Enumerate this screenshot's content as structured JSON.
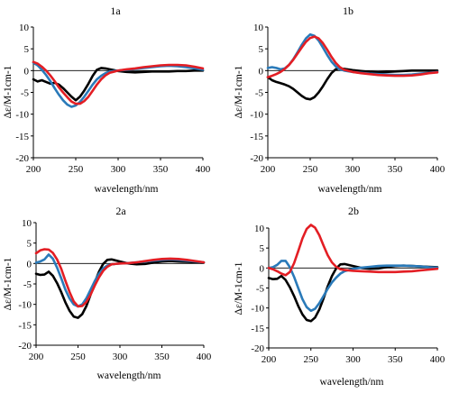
{
  "figure": {
    "panels": [
      {
        "id": "1a",
        "title": "1a",
        "xlabel": "wavelength/nm",
        "ylabel": "Δε/M-1cm-1"
      },
      {
        "id": "1b",
        "title": "1b",
        "xlabel": "wavelength/nm",
        "ylabel": "Δε/M-1cm-1"
      },
      {
        "id": "2a",
        "title": "2a",
        "xlabel": "wavelength/nm",
        "ylabel": "Δε/M-1cm-1"
      },
      {
        "id": "2b",
        "title": "2b",
        "xlabel": "wavelength/nm",
        "ylabel": "Δε/M-1cm-1"
      }
    ]
  },
  "chart_data": [
    {
      "type": "line",
      "title": "1a",
      "xlabel": "wavelength/nm",
      "ylabel": "Δε/M-1cm-1",
      "xlim": [
        200,
        400
      ],
      "ylim": [
        -20,
        10
      ],
      "xticks": [
        200,
        250,
        300,
        350,
        400
      ],
      "yticks": [
        -20,
        -15,
        -10,
        -5,
        0,
        5,
        10
      ],
      "grid": false,
      "series": [
        {
          "color": "#000000",
          "x": [
            200,
            205,
            210,
            215,
            220,
            225,
            230,
            235,
            240,
            245,
            250,
            255,
            260,
            265,
            270,
            275,
            280,
            285,
            290,
            295,
            300,
            310,
            320,
            330,
            340,
            350,
            360,
            370,
            380,
            390,
            400
          ],
          "y": [
            -2.0,
            -2.5,
            -2.2,
            -2.6,
            -3.0,
            -2.8,
            -3.2,
            -4.0,
            -5.0,
            -6.0,
            -6.8,
            -6.0,
            -4.6,
            -3.0,
            -1.2,
            0.2,
            0.6,
            0.5,
            0.3,
            0.1,
            -0.1,
            -0.3,
            -0.4,
            -0.3,
            -0.2,
            -0.2,
            -0.2,
            -0.1,
            -0.1,
            0.0,
            0.0
          ]
        },
        {
          "color": "#2a7ab9",
          "x": [
            200,
            205,
            210,
            215,
            220,
            225,
            230,
            235,
            240,
            245,
            250,
            255,
            260,
            265,
            270,
            275,
            280,
            285,
            290,
            300,
            310,
            320,
            330,
            340,
            350,
            360,
            370,
            380,
            390,
            400
          ],
          "y": [
            1.8,
            1.2,
            0.2,
            -1.0,
            -2.4,
            -4.0,
            -5.5,
            -6.8,
            -7.8,
            -8.3,
            -8.0,
            -7.2,
            -6.0,
            -4.6,
            -3.2,
            -2.0,
            -1.2,
            -0.6,
            -0.2,
            0.0,
            0.2,
            0.4,
            0.6,
            0.8,
            1.0,
            1.1,
            1.0,
            0.8,
            0.5,
            0.2
          ]
        },
        {
          "color": "#e31e24",
          "x": [
            200,
            205,
            210,
            215,
            220,
            225,
            230,
            235,
            240,
            245,
            250,
            255,
            260,
            265,
            270,
            275,
            280,
            285,
            290,
            300,
            310,
            320,
            330,
            340,
            350,
            360,
            370,
            380,
            390,
            400
          ],
          "y": [
            2.0,
            1.6,
            0.9,
            0.0,
            -1.1,
            -2.4,
            -3.8,
            -5.0,
            -6.1,
            -7.1,
            -7.6,
            -7.6,
            -7.0,
            -6.0,
            -4.6,
            -3.2,
            -2.0,
            -1.1,
            -0.5,
            0.0,
            0.3,
            0.5,
            0.8,
            1.0,
            1.2,
            1.3,
            1.3,
            1.2,
            0.9,
            0.5
          ]
        }
      ]
    },
    {
      "type": "line",
      "title": "1b",
      "xlabel": "wavelength/nm",
      "ylabel": "Δε/M-1cm-1",
      "xlim": [
        200,
        400
      ],
      "ylim": [
        -20,
        10
      ],
      "xticks": [
        200,
        250,
        300,
        350,
        400
      ],
      "yticks": [
        -20,
        -15,
        -10,
        -5,
        0,
        5,
        10
      ],
      "grid": false,
      "series": [
        {
          "color": "#000000",
          "x": [
            200,
            205,
            210,
            215,
            220,
            225,
            230,
            235,
            240,
            245,
            250,
            255,
            260,
            265,
            270,
            275,
            280,
            285,
            290,
            300,
            310,
            320,
            330,
            340,
            350,
            360,
            370,
            380,
            390,
            400
          ],
          "y": [
            -1.5,
            -2.2,
            -2.6,
            -2.9,
            -3.2,
            -3.6,
            -4.2,
            -5.0,
            -5.8,
            -6.4,
            -6.6,
            -6.1,
            -5.0,
            -3.6,
            -2.0,
            -0.6,
            0.3,
            0.5,
            0.4,
            0.1,
            -0.1,
            -0.3,
            -0.4,
            -0.3,
            -0.2,
            -0.1,
            0.0,
            0.0,
            0.0,
            0.0
          ]
        },
        {
          "color": "#2a7ab9",
          "x": [
            200,
            205,
            210,
            215,
            220,
            225,
            230,
            235,
            240,
            245,
            250,
            255,
            260,
            265,
            270,
            275,
            280,
            285,
            290,
            300,
            310,
            320,
            330,
            340,
            350,
            360,
            370,
            380,
            390,
            400
          ],
          "y": [
            0.6,
            0.8,
            0.6,
            0.3,
            0.5,
            1.3,
            2.6,
            4.2,
            5.9,
            7.4,
            8.3,
            8.0,
            6.9,
            5.3,
            3.6,
            2.1,
            1.0,
            0.3,
            0.0,
            -0.3,
            -0.5,
            -0.7,
            -0.8,
            -0.9,
            -1.0,
            -1.0,
            -0.9,
            -0.7,
            -0.5,
            -0.3
          ]
        },
        {
          "color": "#e31e24",
          "x": [
            200,
            205,
            210,
            215,
            220,
            225,
            230,
            235,
            240,
            245,
            250,
            255,
            260,
            265,
            270,
            275,
            280,
            285,
            290,
            300,
            310,
            320,
            330,
            340,
            350,
            360,
            370,
            380,
            390,
            400
          ],
          "y": [
            -1.5,
            -1.2,
            -0.8,
            -0.3,
            0.4,
            1.3,
            2.5,
            3.9,
            5.3,
            6.6,
            7.5,
            7.8,
            7.4,
            6.3,
            4.8,
            3.2,
            1.8,
            0.8,
            0.2,
            -0.3,
            -0.6,
            -0.8,
            -1.0,
            -1.1,
            -1.2,
            -1.2,
            -1.1,
            -0.9,
            -0.6,
            -0.4
          ]
        }
      ]
    },
    {
      "type": "line",
      "title": "2a",
      "xlabel": "wavelength/nm",
      "ylabel": "Δε/M-1cm-1",
      "xlim": [
        200,
        400
      ],
      "ylim": [
        -20,
        10
      ],
      "xticks": [
        200,
        250,
        300,
        350,
        400
      ],
      "yticks": [
        -20,
        -15,
        -10,
        -5,
        0,
        5,
        10
      ],
      "grid": false,
      "series": [
        {
          "color": "#000000",
          "x": [
            200,
            205,
            210,
            215,
            220,
            225,
            230,
            235,
            240,
            245,
            250,
            255,
            260,
            265,
            270,
            275,
            280,
            285,
            290,
            300,
            310,
            320,
            330,
            340,
            350,
            360,
            370,
            380,
            390,
            400
          ],
          "y": [
            -2.5,
            -2.8,
            -2.7,
            -2.0,
            -3.0,
            -4.8,
            -7.0,
            -9.5,
            -11.6,
            -13.0,
            -13.3,
            -12.4,
            -10.4,
            -7.6,
            -4.6,
            -2.0,
            -0.1,
            0.9,
            1.0,
            0.5,
            0.0,
            -0.2,
            -0.1,
            0.2,
            0.5,
            0.6,
            0.5,
            0.4,
            0.3,
            0.2
          ]
        },
        {
          "color": "#2a7ab9",
          "x": [
            200,
            205,
            210,
            215,
            220,
            225,
            230,
            235,
            240,
            245,
            250,
            255,
            260,
            265,
            270,
            275,
            280,
            285,
            290,
            300,
            310,
            320,
            330,
            340,
            350,
            360,
            370,
            380,
            390,
            400
          ],
          "y": [
            0.2,
            0.5,
            1.0,
            2.2,
            1.2,
            -1.0,
            -3.6,
            -6.4,
            -8.6,
            -10.0,
            -10.5,
            -10.0,
            -8.5,
            -6.4,
            -4.3,
            -2.5,
            -1.2,
            -0.5,
            -0.2,
            0.0,
            0.1,
            0.3,
            0.5,
            0.7,
            0.9,
            1.0,
            0.9,
            0.7,
            0.5,
            0.3
          ]
        },
        {
          "color": "#e31e24",
          "x": [
            200,
            205,
            210,
            215,
            220,
            225,
            230,
            235,
            240,
            245,
            250,
            255,
            260,
            265,
            270,
            275,
            280,
            285,
            290,
            300,
            310,
            320,
            330,
            340,
            350,
            360,
            370,
            380,
            390,
            400
          ],
          "y": [
            2.5,
            3.2,
            3.5,
            3.4,
            2.6,
            1.0,
            -1.3,
            -4.2,
            -7.0,
            -9.3,
            -10.5,
            -10.4,
            -9.4,
            -7.6,
            -5.4,
            -3.4,
            -1.8,
            -0.8,
            -0.2,
            0.0,
            0.1,
            0.3,
            0.6,
            0.9,
            1.1,
            1.2,
            1.1,
            0.9,
            0.6,
            0.3
          ]
        }
      ]
    },
    {
      "type": "line",
      "title": "2b",
      "xlabel": "wavelength/nm",
      "ylabel": "Δε/M-1cm-1",
      "xlim": [
        200,
        400
      ],
      "ylim": [
        -20,
        10
      ],
      "xticks": [
        200,
        250,
        300,
        350,
        400
      ],
      "yticks": [
        -20,
        -15,
        -10,
        -5,
        0,
        5,
        10
      ],
      "grid": false,
      "series": [
        {
          "color": "#000000",
          "x": [
            200,
            205,
            210,
            215,
            220,
            225,
            230,
            235,
            240,
            245,
            250,
            255,
            260,
            265,
            270,
            275,
            280,
            285,
            290,
            300,
            310,
            320,
            330,
            340,
            350,
            360,
            370,
            380,
            390,
            400
          ],
          "y": [
            -2.5,
            -2.8,
            -2.7,
            -2.0,
            -3.0,
            -4.8,
            -7.0,
            -9.5,
            -11.6,
            -13.0,
            -13.3,
            -12.4,
            -10.4,
            -7.6,
            -4.6,
            -2.0,
            -0.1,
            0.9,
            1.0,
            0.5,
            0.0,
            -0.2,
            -0.1,
            0.2,
            0.5,
            0.6,
            0.5,
            0.4,
            0.3,
            0.2
          ]
        },
        {
          "color": "#2a7ab9",
          "x": [
            200,
            205,
            210,
            215,
            220,
            225,
            230,
            235,
            240,
            245,
            250,
            255,
            260,
            265,
            270,
            275,
            280,
            285,
            290,
            300,
            310,
            320,
            330,
            340,
            350,
            360,
            370,
            380,
            390,
            400
          ],
          "y": [
            0.0,
            0.2,
            0.8,
            1.8,
            1.8,
            0.2,
            -2.2,
            -5.0,
            -7.8,
            -9.8,
            -10.7,
            -10.2,
            -8.8,
            -7.0,
            -5.2,
            -3.6,
            -2.4,
            -1.4,
            -0.8,
            -0.2,
            0.1,
            0.3,
            0.5,
            0.6,
            0.6,
            0.6,
            0.5,
            0.4,
            0.2,
            0.1
          ]
        },
        {
          "color": "#e31e24",
          "x": [
            200,
            205,
            210,
            215,
            220,
            225,
            230,
            235,
            240,
            245,
            250,
            255,
            260,
            265,
            270,
            275,
            280,
            285,
            290,
            300,
            310,
            320,
            330,
            340,
            350,
            360,
            370,
            380,
            390,
            400
          ],
          "y": [
            0.0,
            -0.3,
            -0.8,
            -1.4,
            -1.8,
            -1.0,
            1.2,
            4.2,
            7.4,
            9.8,
            10.8,
            10.1,
            8.2,
            5.6,
            3.2,
            1.4,
            0.3,
            -0.3,
            -0.5,
            -0.7,
            -0.8,
            -0.9,
            -1.0,
            -1.0,
            -1.0,
            -0.9,
            -0.8,
            -0.6,
            -0.4,
            -0.2
          ]
        }
      ]
    }
  ]
}
